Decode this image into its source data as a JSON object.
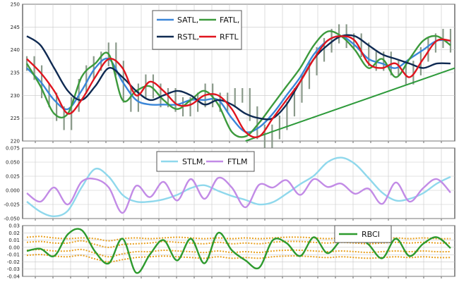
{
  "chart_data": [
    {
      "type": "line",
      "panel": "price",
      "ylim": [
        220,
        250
      ],
      "yticks": [
        "250",
        "245",
        "240",
        "235",
        "230",
        "225",
        "220"
      ],
      "grid": true,
      "legend_position": "top-center",
      "series": [
        {
          "name": "SATL,",
          "color": "#3a86d8",
          "values": [
            236,
            233,
            229,
            227,
            231,
            236,
            238,
            233,
            229,
            228,
            228,
            228,
            229,
            229,
            229,
            225,
            222,
            223,
            226,
            230,
            234,
            239,
            242,
            243,
            241,
            238,
            237,
            236,
            238,
            240,
            242,
            242
          ]
        },
        {
          "name": "FATL,",
          "color": "#3c9a3c",
          "values": [
            237,
            232,
            226,
            226,
            234,
            237,
            239,
            229,
            231,
            232,
            229,
            227,
            229,
            231,
            228,
            222,
            221,
            224,
            228,
            232,
            236,
            241,
            244,
            243,
            240,
            236,
            238,
            234,
            238,
            242,
            243,
            241
          ]
        },
        {
          "name": "RSTL,",
          "color": "#0f2a52",
          "values": [
            243,
            241,
            236,
            231,
            229,
            232,
            236,
            234,
            231,
            229,
            230,
            231,
            230,
            228,
            229,
            228,
            226,
            225,
            225,
            228,
            233,
            238,
            241,
            243,
            243,
            241,
            239,
            238,
            237,
            236,
            237,
            237
          ]
        },
        {
          "name": "RFTL",
          "color": "#e0141e",
          "values": [
            238,
            235,
            231,
            226,
            229,
            234,
            238,
            236,
            230,
            233,
            231,
            228,
            228,
            230,
            230,
            227,
            222,
            221,
            225,
            229,
            233,
            238,
            242,
            243,
            242,
            237,
            236,
            237,
            234,
            238,
            242,
            242
          ]
        }
      ],
      "bars": {
        "color": "#8a9a8a",
        "values": [
          237,
          235,
          231,
          229,
          226,
          224,
          228,
          232,
          235,
          237,
          238,
          240,
          236,
          230,
          228,
          231,
          233,
          231,
          229,
          230,
          228,
          227,
          228,
          229,
          231,
          229,
          228,
          229,
          230,
          230,
          226,
          222,
          220,
          222,
          224,
          227,
          230,
          233,
          236,
          239,
          241,
          243,
          244,
          242,
          242,
          240,
          238,
          237,
          238,
          236,
          236,
          234,
          236,
          239,
          241,
          242,
          243,
          241
        ]
      },
      "trendline": {
        "color": "#2d9a3a",
        "from": [
          16,
          220
        ],
        "to": [
          31,
          236
        ]
      }
    },
    {
      "type": "line",
      "panel": "oscillator",
      "ylim": [
        -0.05,
        0.075
      ],
      "yticks": [
        "0.075",
        "0.050",
        "0.025",
        "0.000",
        "-0.025",
        "-0.050"
      ],
      "grid": true,
      "legend_position": "top-center",
      "series": [
        {
          "name": "STLM,",
          "color": "#8fd8ec",
          "values": [
            -0.02,
            -0.038,
            -0.046,
            -0.036,
            0.005,
            0.038,
            0.024,
            -0.008,
            -0.02,
            -0.02,
            -0.016,
            -0.008,
            0.004,
            0.009,
            -0.001,
            -0.01,
            -0.017,
            -0.025,
            -0.021,
            -0.006,
            0.011,
            0.026,
            0.05,
            0.058,
            0.047,
            0.022,
            -0.004,
            -0.018,
            -0.015,
            -0.005,
            0.012,
            0.024
          ]
        },
        {
          "name": "FTLM",
          "color": "#c28be6",
          "values": [
            -0.005,
            -0.02,
            0.005,
            -0.025,
            0.015,
            0.02,
            0.005,
            -0.04,
            0.008,
            -0.012,
            0.015,
            -0.018,
            0.02,
            -0.015,
            0.022,
            0.005,
            -0.03,
            0.01,
            0.005,
            0.018,
            -0.008,
            0.02,
            0.006,
            0.012,
            -0.006,
            0.003,
            -0.024,
            0.014,
            -0.02,
            0.004,
            0.02,
            -0.004
          ]
        }
      ]
    },
    {
      "type": "line",
      "panel": "rbci",
      "ylim": [
        -0.04,
        0.03
      ],
      "yticks": [
        "0.03",
        "0.02",
        "0.01",
        "0.00",
        "-0.01",
        "-0.02",
        "-0.03",
        "-0.04"
      ],
      "grid": true,
      "legend_position": "top-right",
      "series": [
        {
          "name": "RBCI",
          "color": "#2d9a2d",
          "values": [
            -0.005,
            -0.002,
            -0.012,
            0.018,
            0.024,
            -0.006,
            -0.022,
            0.012,
            -0.035,
            -0.01,
            0.01,
            -0.018,
            0.012,
            -0.022,
            0.02,
            -0.004,
            -0.018,
            -0.028,
            0.01,
            0.006,
            -0.012,
            0.014,
            -0.008,
            0.01,
            0.016,
            0.004,
            -0.015,
            0.012,
            -0.012,
            0.005,
            0.014,
            -0.001
          ]
        }
      ],
      "bands": {
        "color": "#e8a020",
        "series": [
          [
            0.014,
            0.015,
            0.013,
            0.012,
            0.013,
            0.012,
            0.009,
            0.012,
            0.013,
            0.012,
            0.013,
            0.014,
            0.013,
            0.012,
            0.013,
            0.012,
            0.013,
            0.012,
            0.013,
            0.014,
            0.014,
            0.013,
            0.012,
            0.013,
            0.012,
            0.011,
            0.012,
            0.013,
            0.012,
            0.013,
            0.012,
            0.012
          ],
          [
            0.007,
            0.008,
            0.006,
            0.006,
            0.009,
            0.004,
            0.0,
            0.004,
            0.005,
            0.006,
            0.008,
            0.007,
            0.006,
            0.005,
            0.007,
            0.005,
            0.006,
            0.005,
            0.007,
            0.008,
            0.008,
            0.007,
            0.006,
            0.007,
            0.006,
            0.005,
            0.006,
            0.007,
            0.006,
            0.007,
            0.006,
            0.006
          ],
          [
            -0.004,
            -0.003,
            -0.005,
            -0.005,
            -0.003,
            -0.008,
            -0.013,
            -0.009,
            -0.006,
            -0.006,
            -0.004,
            -0.005,
            -0.006,
            -0.007,
            -0.005,
            -0.007,
            -0.006,
            -0.007,
            -0.005,
            -0.004,
            -0.004,
            -0.005,
            -0.006,
            -0.005,
            -0.006,
            -0.007,
            -0.006,
            -0.005,
            -0.006,
            -0.005,
            -0.006,
            -0.006
          ],
          [
            -0.011,
            -0.01,
            -0.012,
            -0.013,
            -0.011,
            -0.016,
            -0.02,
            -0.017,
            -0.014,
            -0.013,
            -0.012,
            -0.013,
            -0.014,
            -0.015,
            -0.013,
            -0.015,
            -0.014,
            -0.015,
            -0.013,
            -0.012,
            -0.012,
            -0.013,
            -0.014,
            -0.013,
            -0.014,
            -0.015,
            -0.014,
            -0.013,
            -0.014,
            -0.013,
            -0.014,
            -0.014
          ]
        ]
      }
    }
  ]
}
